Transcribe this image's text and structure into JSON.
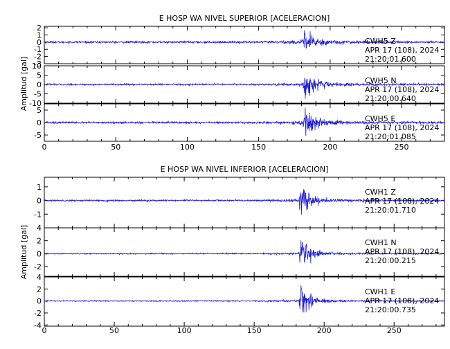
{
  "figure": {
    "background": "#ffffff",
    "trace_color": "#1f1fd6",
    "axis_color": "#000000"
  },
  "chart_data": [
    {
      "type": "line",
      "title": "E HOSP WA NIVEL SUPERIOR [ACELERACION]",
      "ylabel": "Amplitud [gal]",
      "xlim": [
        0,
        280
      ],
      "x_ticks": [
        0,
        50,
        100,
        150,
        200,
        250
      ],
      "event_time": 181,
      "channels": [
        {
          "station": "CWH5",
          "component": "Z",
          "date": "APR 17 (108), 2024",
          "time": "21:20:01.600",
          "ylim": [
            -3,
            2.2
          ],
          "y_ticks": [
            -3,
            -2,
            -1,
            0,
            1,
            2
          ],
          "noise": 0.12,
          "peak": 1.9
        },
        {
          "station": "CWH5",
          "component": "N",
          "date": "APR 17 (108), 2024",
          "time": "21:20:00.640",
          "ylim": [
            -10,
            10
          ],
          "y_ticks": [
            -10,
            -5,
            0,
            5,
            10
          ],
          "noise": 0.4,
          "peak": 9
        },
        {
          "station": "CWH5",
          "component": "E",
          "date": "APR 17 (108), 2024",
          "time": "21:20:01.085",
          "ylim": [
            -7.5,
            7.5
          ],
          "y_ticks": [
            -5,
            0,
            5
          ],
          "noise": 0.35,
          "peak": 7
        }
      ]
    },
    {
      "type": "line",
      "title": "E HOSP WA NIVEL INFERIOR [ACELERACION]",
      "ylabel": "Amplitud [gal]",
      "xlim": [
        0,
        286
      ],
      "x_ticks": [
        0,
        50,
        100,
        150,
        200,
        250
      ],
      "event_time": 182,
      "channels": [
        {
          "station": "CWH1",
          "component": "Z",
          "date": "APR 17 (108), 2024",
          "time": "21:20:01.710",
          "ylim": [
            -2,
            1.7
          ],
          "y_ticks": [
            -1,
            0,
            1
          ],
          "noise": 0.05,
          "peak": 1.55
        },
        {
          "station": "CWH1",
          "component": "N",
          "date": "APR 17 (108), 2024",
          "time": "21:20:00.215",
          "ylim": [
            -3.5,
            4
          ],
          "y_ticks": [
            -2,
            0,
            2,
            4
          ],
          "noise": 0.08,
          "peak": 3.4
        },
        {
          "station": "CWH1",
          "component": "E",
          "date": "APR 17 (108), 2024",
          "time": "21:20:00.735",
          "ylim": [
            -4.2,
            4
          ],
          "y_ticks": [
            -4,
            -2,
            0,
            2,
            4
          ],
          "noise": 0.08,
          "peak": 3.9
        }
      ]
    }
  ]
}
